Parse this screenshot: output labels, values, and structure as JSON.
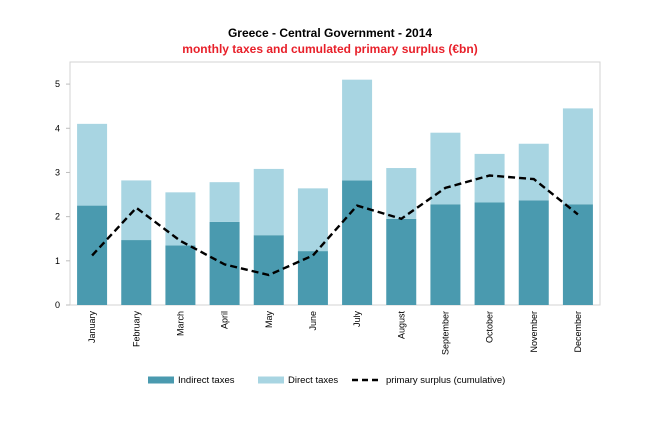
{
  "chart_data": {
    "type": "bar",
    "stacked": true,
    "title": "Greece - Central Government - 2014",
    "subtitle": "monthly taxes and cumulated primary surplus (€bn)",
    "categories": [
      "January",
      "February",
      "March",
      "April",
      "May",
      "June",
      "July",
      "August",
      "September",
      "October",
      "November",
      "December"
    ],
    "series": [
      {
        "name": "Indirect taxes",
        "kind": "bar",
        "color": "#4a9aaf",
        "values": [
          2.25,
          1.47,
          1.35,
          1.88,
          1.58,
          1.22,
          2.82,
          1.95,
          2.28,
          2.32,
          2.37,
          2.28
        ]
      },
      {
        "name": "Direct taxes",
        "kind": "bar",
        "color": "#a8d5e2",
        "values": [
          1.85,
          1.35,
          1.2,
          0.9,
          1.5,
          1.42,
          2.28,
          1.15,
          1.62,
          1.1,
          1.28,
          2.17
        ]
      },
      {
        "name": "primary surplus (cumulative)",
        "kind": "line",
        "style": "dashed",
        "color": "#000000",
        "values": [
          1.12,
          2.2,
          1.45,
          0.92,
          0.68,
          1.12,
          2.25,
          1.95,
          2.65,
          2.93,
          2.85,
          2.05
        ]
      }
    ],
    "ylim": [
      0,
      5.5
    ],
    "yticks": [
      0,
      1,
      2,
      3,
      4,
      5
    ],
    "xlabel": "",
    "ylabel": "",
    "grid": false,
    "legend_position": "bottom"
  }
}
